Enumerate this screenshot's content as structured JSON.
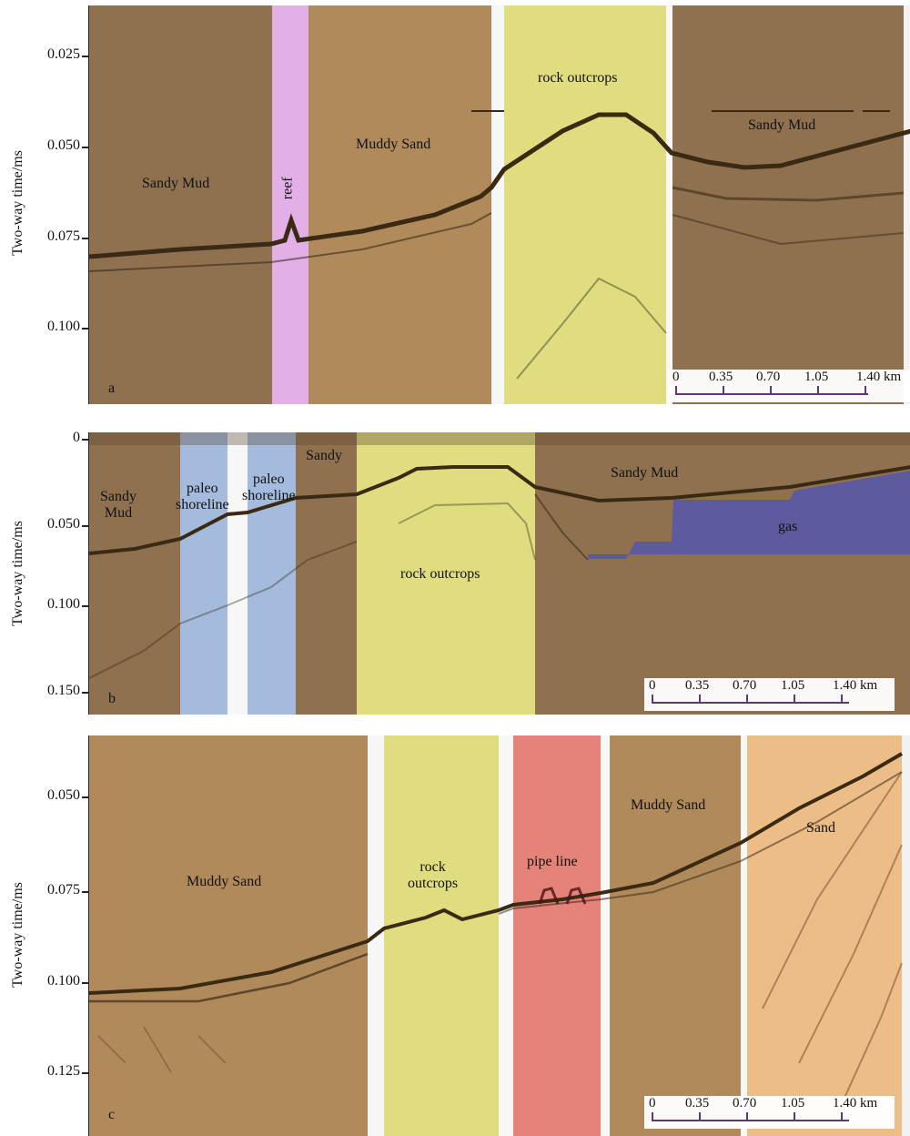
{
  "axis_label": "Two-way time/ms",
  "panels": [
    {
      "id": "a",
      "ticks": [
        "0.025",
        "0.050",
        "0.075",
        "0.100"
      ],
      "zones": [
        {
          "name": "Sandy Mud",
          "color": "#8f7150"
        },
        {
          "name": "reef",
          "color": "#e2b0e6"
        },
        {
          "name": "Muddy Sand",
          "color": "#b08a5a"
        },
        {
          "name": "rock outcrops",
          "color": "#e0dc80"
        },
        {
          "name": "Sandy Mud",
          "color": "#8f7150"
        }
      ],
      "scale": [
        "0",
        "0.35",
        "0.70",
        "1.05",
        "1.40 km"
      ]
    },
    {
      "id": "b",
      "ticks": [
        "0",
        "0.050",
        "0.100",
        "0.150"
      ],
      "zones": [
        {
          "name": "Sandy\nMud",
          "color": "#8f7150"
        },
        {
          "name": "paleo\nshoreline",
          "color": "#a5bbdd"
        },
        {
          "name": "paleo\nshoreline",
          "color": "#a5bbdd"
        },
        {
          "name": "Sandy",
          "color": "#8f7150"
        },
        {
          "name": "rock outcrops",
          "color": "#e0dc80"
        },
        {
          "name": "Sandy Mud",
          "color": "#8f7150"
        },
        {
          "name": "gas",
          "color": "#5d5aa0"
        }
      ],
      "scale": [
        "0",
        "0.35",
        "0.70",
        "1.05",
        "1.40 km"
      ]
    },
    {
      "id": "c",
      "ticks": [
        "0.050",
        "0.075",
        "0.100",
        "0.125"
      ],
      "zones": [
        {
          "name": "Muddy Sand",
          "color": "#b08a5a"
        },
        {
          "name": "rock\noutcrops",
          "color": "#e0dc80"
        },
        {
          "name": "pipe line",
          "color": "#e5827a"
        },
        {
          "name": "Muddy Sand",
          "color": "#b08a5a"
        },
        {
          "name": "Sand",
          "color": "#edbd88"
        }
      ],
      "scale": [
        "0",
        "0.35",
        "0.70",
        "1.05",
        "1.40 km"
      ]
    }
  ]
}
